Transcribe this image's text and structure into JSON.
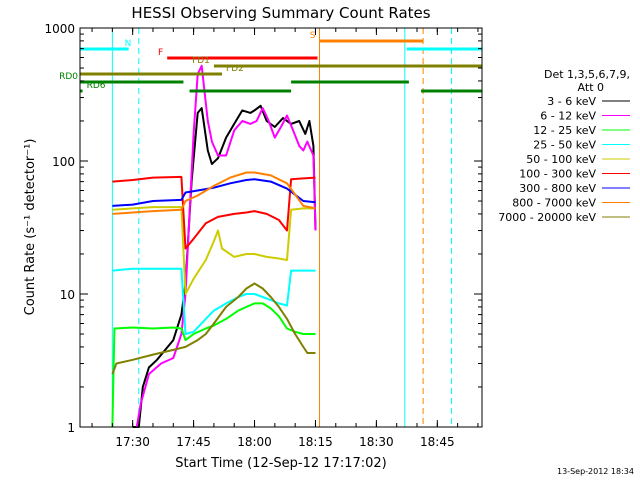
{
  "chart_data": {
    "type": "line",
    "title": "HESSI Observing Summary Count Rates",
    "xlabel": "Start Time (12-Sep-12 17:17:02)",
    "ylabel": "Count Rate (s⁻¹ detector⁻¹)",
    "y_scale": "log",
    "ylim": [
      1,
      1000
    ],
    "xlim": [
      "17:17:02",
      "18:56:00"
    ],
    "x_ticks": [
      "17:30",
      "17:45",
      "18:00",
      "18:15",
      "18:30",
      "18:45"
    ],
    "y_ticks": [
      "1",
      "10",
      "100",
      "1000"
    ],
    "legend": {
      "placement": "right",
      "header": [
        "Det 1,3,5,6,7,9,",
        "Att 0"
      ]
    },
    "series": [
      {
        "name": "3 - 6 keV",
        "color": "#000000",
        "points": [
          [
            "17:30:00",
            1
          ],
          [
            "17:31:30",
            1
          ],
          [
            "17:32:30",
            2
          ],
          [
            "17:34:00",
            2.8
          ],
          [
            "17:36:00",
            3.2
          ],
          [
            "17:38:00",
            3.8
          ],
          [
            "17:40:00",
            4.5
          ],
          [
            "17:42:00",
            7
          ],
          [
            "17:43:00",
            12
          ],
          [
            "17:44:30",
            70
          ],
          [
            "17:46:00",
            230
          ],
          [
            "17:47:00",
            250
          ],
          [
            "17:48:30",
            120
          ],
          [
            "17:49:30",
            95
          ],
          [
            "17:51:00",
            105
          ],
          [
            "17:53:00",
            150
          ],
          [
            "17:55:00",
            190
          ],
          [
            "17:57:00",
            240
          ],
          [
            "17:59:00",
            230
          ],
          [
            "18:00:00",
            240
          ],
          [
            "18:01:30",
            260
          ],
          [
            "18:03:00",
            200
          ],
          [
            "18:05:00",
            180
          ],
          [
            "18:07:00",
            210
          ],
          [
            "18:09:00",
            190
          ],
          [
            "18:11:00",
            200
          ],
          [
            "18:12:30",
            160
          ],
          [
            "18:13:30",
            200
          ],
          [
            "18:14:30",
            130
          ],
          [
            "18:15:00",
            30
          ]
        ]
      },
      {
        "name": "6 - 12 keV",
        "color": "#ff00ff",
        "points": [
          [
            "17:31:00",
            1
          ],
          [
            "17:32:00",
            1.5
          ],
          [
            "17:34:00",
            2.5
          ],
          [
            "17:37:00",
            3
          ],
          [
            "17:40:00",
            3.3
          ],
          [
            "17:42:00",
            5
          ],
          [
            "17:43:00",
            10
          ],
          [
            "17:44:00",
            40
          ],
          [
            "17:45:00",
            160
          ],
          [
            "17:46:00",
            450
          ],
          [
            "17:47:00",
            520
          ],
          [
            "17:48:30",
            200
          ],
          [
            "17:49:30",
            140
          ],
          [
            "17:51:00",
            110
          ],
          [
            "17:53:00",
            110
          ],
          [
            "17:55:00",
            170
          ],
          [
            "17:57:00",
            200
          ],
          [
            "17:59:00",
            190
          ],
          [
            "18:00:30",
            200
          ],
          [
            "18:02:00",
            250
          ],
          [
            "18:03:30",
            200
          ],
          [
            "18:05:00",
            150
          ],
          [
            "18:06:30",
            180
          ],
          [
            "18:08:00",
            220
          ],
          [
            "18:09:30",
            170
          ],
          [
            "18:11:00",
            130
          ],
          [
            "18:12:00",
            120
          ],
          [
            "18:13:00",
            140
          ],
          [
            "18:14:30",
            110
          ],
          [
            "18:15:00",
            30
          ]
        ]
      },
      {
        "name": "12 - 25 keV",
        "color": "#00ff00",
        "points": [
          [
            "17:25:00",
            1
          ],
          [
            "17:25:30",
            5.5
          ],
          [
            "17:30:00",
            5.6
          ],
          [
            "17:35:00",
            5.5
          ],
          [
            "17:40:00",
            5.6
          ],
          [
            "17:42:00",
            5.5
          ],
          [
            "17:43:00",
            4.5
          ],
          [
            "17:45:00",
            5
          ],
          [
            "17:48:00",
            5.5
          ],
          [
            "17:50:00",
            5.8
          ],
          [
            "17:53:00",
            6.5
          ],
          [
            "17:56:00",
            7.5
          ],
          [
            "17:58:00",
            8
          ],
          [
            "18:00:00",
            8.5
          ],
          [
            "18:02:00",
            8.5
          ],
          [
            "18:04:00",
            7.8
          ],
          [
            "18:06:00",
            6.8
          ],
          [
            "18:08:00",
            5.5
          ],
          [
            "18:10:00",
            5.2
          ],
          [
            "18:12:00",
            5
          ],
          [
            "18:15:00",
            5
          ]
        ]
      },
      {
        "name": "25 - 50 keV",
        "color": "#00ffff",
        "points": [
          [
            "17:25:00",
            15
          ],
          [
            "17:30:00",
            15.5
          ],
          [
            "17:35:00",
            15.5
          ],
          [
            "17:42:00",
            15.5
          ],
          [
            "17:43:00",
            5
          ],
          [
            "17:45:00",
            5.2
          ],
          [
            "17:48:00",
            6.5
          ],
          [
            "17:50:00",
            7.5
          ],
          [
            "17:53:00",
            8.5
          ],
          [
            "17:56:00",
            9.5
          ],
          [
            "17:58:00",
            10
          ],
          [
            "18:00:00",
            10
          ],
          [
            "18:02:00",
            9.5
          ],
          [
            "18:04:00",
            9
          ],
          [
            "18:06:00",
            8.5
          ],
          [
            "18:08:00",
            8.2
          ],
          [
            "18:09:00",
            15
          ],
          [
            "18:12:00",
            15
          ],
          [
            "18:15:00",
            15
          ]
        ]
      },
      {
        "name": "50 - 100 keV",
        "color": "#cccc00",
        "points": [
          [
            "17:25:00",
            43
          ],
          [
            "17:30:00",
            44
          ],
          [
            "17:35:00",
            45
          ],
          [
            "17:42:00",
            45
          ],
          [
            "17:43:00",
            10
          ],
          [
            "17:45:00",
            13
          ],
          [
            "17:48:00",
            18
          ],
          [
            "17:50:00",
            25
          ],
          [
            "17:51:00",
            30
          ],
          [
            "17:52:00",
            22
          ],
          [
            "17:55:00",
            19
          ],
          [
            "17:58:00",
            20
          ],
          [
            "18:00:00",
            20
          ],
          [
            "18:03:00",
            19
          ],
          [
            "18:06:00",
            18.5
          ],
          [
            "18:08:00",
            18
          ],
          [
            "18:09:00",
            43
          ],
          [
            "18:12:00",
            44
          ],
          [
            "18:15:00",
            44
          ]
        ]
      },
      {
        "name": "100 - 300 keV",
        "color": "#ff0000",
        "points": [
          [
            "17:25:00",
            70
          ],
          [
            "17:30:00",
            72
          ],
          [
            "17:35:00",
            75
          ],
          [
            "17:42:00",
            76
          ],
          [
            "17:43:00",
            22
          ],
          [
            "17:45:00",
            26
          ],
          [
            "17:48:00",
            34
          ],
          [
            "17:51:00",
            38
          ],
          [
            "17:55:00",
            40
          ],
          [
            "17:58:00",
            41
          ],
          [
            "18:00:00",
            42
          ],
          [
            "18:03:00",
            40
          ],
          [
            "18:06:00",
            36
          ],
          [
            "18:08:00",
            30
          ],
          [
            "18:09:00",
            73
          ],
          [
            "18:12:00",
            74
          ],
          [
            "18:15:00",
            75
          ]
        ]
      },
      {
        "name": "300 - 800 keV",
        "color": "#0000ff",
        "points": [
          [
            "17:25:00",
            46
          ],
          [
            "17:30:00",
            47
          ],
          [
            "17:35:00",
            50
          ],
          [
            "17:42:00",
            51
          ],
          [
            "17:43:00",
            58
          ],
          [
            "17:46:00",
            60
          ],
          [
            "17:50:00",
            63
          ],
          [
            "17:54:00",
            68
          ],
          [
            "17:58:00",
            72
          ],
          [
            "18:00:00",
            73
          ],
          [
            "18:04:00",
            70
          ],
          [
            "18:08:00",
            62
          ],
          [
            "18:12:00",
            50
          ],
          [
            "18:15:00",
            49
          ]
        ]
      },
      {
        "name": "800 - 7000 keV",
        "color": "#ff8000",
        "points": [
          [
            "17:25:00",
            40
          ],
          [
            "17:30:00",
            41
          ],
          [
            "17:35:00",
            42
          ],
          [
            "17:42:00",
            43
          ],
          [
            "17:43:00",
            50
          ],
          [
            "17:46:00",
            55
          ],
          [
            "17:50:00",
            65
          ],
          [
            "17:54:00",
            75
          ],
          [
            "17:58:00",
            82
          ],
          [
            "18:00:00",
            82
          ],
          [
            "18:04:00",
            78
          ],
          [
            "18:08:00",
            68
          ],
          [
            "18:12:00",
            46
          ],
          [
            "18:15:00",
            44
          ]
        ]
      },
      {
        "name": "7000 - 20000 keV",
        "color": "#808000",
        "points": [
          [
            "17:25:00",
            2.5
          ],
          [
            "17:26:00",
            3
          ],
          [
            "17:30:00",
            3.2
          ],
          [
            "17:35:00",
            3.5
          ],
          [
            "17:40:00",
            3.8
          ],
          [
            "17:43:00",
            4
          ],
          [
            "17:46:00",
            4.5
          ],
          [
            "17:48:00",
            5
          ],
          [
            "17:50:00",
            6
          ],
          [
            "17:53:00",
            8
          ],
          [
            "17:56:00",
            9.5
          ],
          [
            "17:58:00",
            11
          ],
          [
            "18:00:00",
            12
          ],
          [
            "18:02:00",
            11
          ],
          [
            "18:04:00",
            9.5
          ],
          [
            "18:06:00",
            8
          ],
          [
            "18:08:00",
            6.5
          ],
          [
            "18:10:00",
            5
          ],
          [
            "18:12:00",
            4
          ],
          [
            "18:13:00",
            3.6
          ],
          [
            "18:15:00",
            3.6
          ]
        ]
      }
    ],
    "vertical_markers": [
      {
        "time": "17:25:00",
        "color": "#00ffff",
        "style": "solid"
      },
      {
        "time": "17:31:30",
        "color": "#00ffff",
        "style": "dashed"
      },
      {
        "time": "18:16:00",
        "color": "#ff8000",
        "style": "solid"
      },
      {
        "time": "18:37:00",
        "color": "#00ffff",
        "style": "solid"
      },
      {
        "time": "18:41:30",
        "color": "#ff8000",
        "style": "dashed"
      },
      {
        "time": "18:48:30",
        "color": "#00ffff",
        "style": "dashed"
      }
    ],
    "flag_bars": [
      {
        "label": "N",
        "color": "#00ffff",
        "level": 1,
        "label_pos": "right",
        "segments": [
          [
            "17:17:02",
            "17:29:00"
          ],
          [
            "18:37:30",
            "18:56:00"
          ]
        ]
      },
      {
        "label": "S",
        "color": "#ff8000",
        "level": 0,
        "label_pos": "left",
        "segments": [
          [
            "18:16:00",
            "18:41:30"
          ]
        ]
      },
      {
        "label": "F",
        "color": "#ff0000",
        "level": 2,
        "label_pos": "left",
        "segments": [
          [
            "17:38:30",
            "18:15:30"
          ]
        ]
      },
      {
        "label": "FD1",
        "color": "#808000",
        "level": 3,
        "label_pos": "left",
        "segments": [
          [
            "17:50:00",
            "18:56:00"
          ]
        ]
      },
      {
        "label": "FD2",
        "color": "#808000",
        "level": 4,
        "label_pos": "right",
        "segments": [
          [
            "17:17:02",
            "17:52:00"
          ]
        ]
      },
      {
        "label": "RD0",
        "color": "#008000",
        "level": 5,
        "label_pos": "left",
        "segments": [
          [
            "17:17:02",
            "17:42:30"
          ],
          [
            "18:09:00",
            "18:38:00"
          ]
        ]
      },
      {
        "label": "RD6",
        "color": "#008000",
        "level": 6,
        "label_pos": "right",
        "segments": [
          [
            "17:17:02",
            "17:17:40"
          ],
          [
            "17:44:00",
            "18:09:00"
          ],
          [
            "18:41:00",
            "18:56:00"
          ]
        ]
      }
    ],
    "timestamp": "13-Sep-2012 18:34"
  }
}
